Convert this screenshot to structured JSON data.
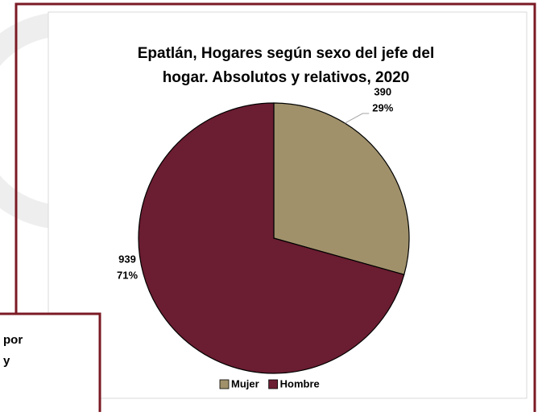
{
  "chart_data": {
    "type": "pie",
    "title": [
      "Epatlán, Hogares según sexo del jefe del",
      "hogar. Absolutos y relativos, 2020"
    ],
    "categories": [
      "Mujer",
      "Hombre"
    ],
    "values": [
      390,
      939
    ],
    "percent_labels": [
      "29%",
      "71%"
    ],
    "colors": [
      "#a0916b",
      "#6b1d31"
    ],
    "legend": "bottom"
  },
  "overlay_box": {
    "lines": [
      "por",
      "y"
    ]
  }
}
